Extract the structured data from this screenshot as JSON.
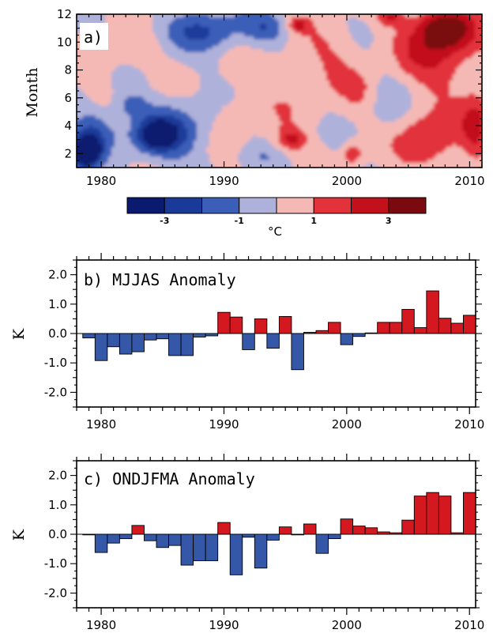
{
  "chart_data": [
    {
      "panel": "a)",
      "type": "heatmap",
      "ylabel": "Month",
      "xlim": [
        1978,
        2011
      ],
      "ylim": [
        1,
        12
      ],
      "x_ticks": [
        "1980",
        "1990",
        "2000",
        "2010"
      ],
      "y_ticks": [
        "2",
        "4",
        "6",
        "8",
        "10",
        "12"
      ],
      "colorbar": {
        "levels": [
          -4,
          -3,
          -2,
          -1,
          0,
          1,
          2,
          3,
          4
        ],
        "labels": [
          "-3",
          "-1",
          "1",
          "3"
        ],
        "unit": "°C",
        "colors": [
          "#0a1a6e",
          "#1a3a9a",
          "#3b5fb8",
          "#aeb1da",
          "#f5b9b5",
          "#e2323a",
          "#c3111c",
          "#7a0a10"
        ]
      },
      "field_blobs": [
        {
          "x": 1978.5,
          "y": 2.0,
          "rx": 1.2,
          "ry": 1.3,
          "v": -3
        },
        {
          "x": 1979.5,
          "y": 3.6,
          "rx": 1.8,
          "ry": 1.6,
          "v": -2
        },
        {
          "x": 1979.0,
          "y": 2.2,
          "rx": 0.8,
          "ry": 0.7,
          "v": -4
        },
        {
          "x": 1985.5,
          "y": 3.5,
          "rx": 3.0,
          "ry": 2.0,
          "v": -2.2
        },
        {
          "x": 1984.5,
          "y": 3.3,
          "rx": 1.5,
          "ry": 1.0,
          "v": -3
        },
        {
          "x": 1988.5,
          "y": 10.8,
          "rx": 3.2,
          "ry": 1.5,
          "v": -2
        },
        {
          "x": 1993.5,
          "y": 11.0,
          "rx": 1.8,
          "ry": 1.2,
          "v": -1.8
        },
        {
          "x": 1982.5,
          "y": 5.5,
          "rx": 1.2,
          "ry": 0.8,
          "v": -1.5
        },
        {
          "x": 1983.0,
          "y": 9.5,
          "rx": 2.0,
          "ry": 1.2,
          "v": 0.7
        },
        {
          "x": 1980.5,
          "y": 8.5,
          "rx": 2.0,
          "ry": 1.5,
          "v": 0.6
        },
        {
          "x": 1996.0,
          "y": 7.0,
          "rx": 4.0,
          "ry": 4.0,
          "v": 0.7
        },
        {
          "x": 1999.0,
          "y": 9.5,
          "rx": 2.5,
          "ry": 2.0,
          "v": 0.7
        },
        {
          "x": 1990.5,
          "y": 5.0,
          "rx": 1.5,
          "ry": 2.0,
          "v": 0.6
        },
        {
          "x": 1995.5,
          "y": 3.0,
          "rx": 1.2,
          "ry": 0.8,
          "v": 2
        },
        {
          "x": 1996.0,
          "y": 11.2,
          "rx": 0.8,
          "ry": 0.5,
          "v": 2
        },
        {
          "x": 2000.5,
          "y": 2.0,
          "rx": 0.8,
          "ry": 0.8,
          "v": 1.8
        },
        {
          "x": 2003.5,
          "y": 11.8,
          "rx": 1.0,
          "ry": 0.6,
          "v": 1.8
        },
        {
          "x": 2007.5,
          "y": 9.5,
          "rx": 3.5,
          "ry": 3.0,
          "v": 2.3
        },
        {
          "x": 2008.0,
          "y": 11.0,
          "rx": 2.0,
          "ry": 1.3,
          "v": 3
        },
        {
          "x": 2006.5,
          "y": 2.8,
          "rx": 2.5,
          "ry": 2.0,
          "v": 2.2
        },
        {
          "x": 2010.5,
          "y": 4.0,
          "rx": 1.2,
          "ry": 2.0,
          "v": 2.5
        },
        {
          "x": 2003.5,
          "y": 5.5,
          "rx": 1.5,
          "ry": 2.5,
          "v": -0.6
        },
        {
          "x": 2001.0,
          "y": 6.5,
          "rx": 1.5,
          "ry": 1.5,
          "v": 0.8
        },
        {
          "x": 1993.0,
          "y": 1.8,
          "rx": 1.5,
          "ry": 0.6,
          "v": -0.6
        }
      ]
    },
    {
      "panel": "b)",
      "label": "MJJAS Anomaly",
      "type": "bar",
      "ylabel": "K",
      "ylim": [
        -2.5,
        2.5
      ],
      "xlim": [
        1978,
        2010.5
      ],
      "x_ticks": [
        "1980",
        "1990",
        "2000",
        "2010"
      ],
      "y_ticks": [
        "2.0",
        "1.0",
        "0.0",
        "-1.0",
        "-2.0"
      ],
      "pos_color": "#d41820",
      "neg_color": "#3557a8",
      "x": [
        1979,
        1980,
        1981,
        1982,
        1983,
        1984,
        1985,
        1986,
        1987,
        1988,
        1989,
        1990,
        1991,
        1992,
        1993,
        1994,
        1995,
        1996,
        1997,
        1998,
        1999,
        2000,
        2001,
        2002,
        2003,
        2004,
        2005,
        2006,
        2007,
        2008,
        2009,
        2010
      ],
      "values": [
        -0.15,
        -0.92,
        -0.45,
        -0.7,
        -0.62,
        -0.22,
        -0.18,
        -0.75,
        -0.75,
        -0.12,
        -0.08,
        0.72,
        0.56,
        -0.55,
        0.5,
        -0.5,
        0.58,
        -1.23,
        0.04,
        0.1,
        0.38,
        -0.38,
        -0.1,
        0.02,
        0.38,
        0.38,
        0.82,
        0.2,
        1.45,
        0.52,
        0.35,
        0.62
      ]
    },
    {
      "panel": "c)",
      "label": "ONDJFMA Anomaly",
      "type": "bar",
      "ylabel": "K",
      "ylim": [
        -2.5,
        2.5
      ],
      "xlim": [
        1978,
        2010.5
      ],
      "x_ticks": [
        "1980",
        "1990",
        "2000",
        "2010"
      ],
      "y_ticks": [
        "2.0",
        "1.0",
        "0.0",
        "-1.0",
        "-2.0"
      ],
      "pos_color": "#d41820",
      "neg_color": "#3557a8",
      "x": [
        1979,
        1980,
        1981,
        1982,
        1983,
        1984,
        1985,
        1986,
        1987,
        1988,
        1989,
        1990,
        1991,
        1992,
        1993,
        1994,
        1995,
        1996,
        1997,
        1998,
        1999,
        2000,
        2001,
        2002,
        2003,
        2004,
        2005,
        2006,
        2007,
        2008,
        2009,
        2010
      ],
      "values": [
        -0.02,
        -0.62,
        -0.3,
        -0.15,
        0.3,
        -0.22,
        -0.45,
        -0.38,
        -1.05,
        -0.9,
        -0.9,
        0.4,
        -1.38,
        -0.1,
        -1.15,
        -0.2,
        0.25,
        -0.02,
        0.35,
        -0.65,
        -0.15,
        0.52,
        0.28,
        0.22,
        0.08,
        0.05,
        0.48,
        1.3,
        1.42,
        1.3,
        0.05,
        1.42
      ]
    }
  ]
}
